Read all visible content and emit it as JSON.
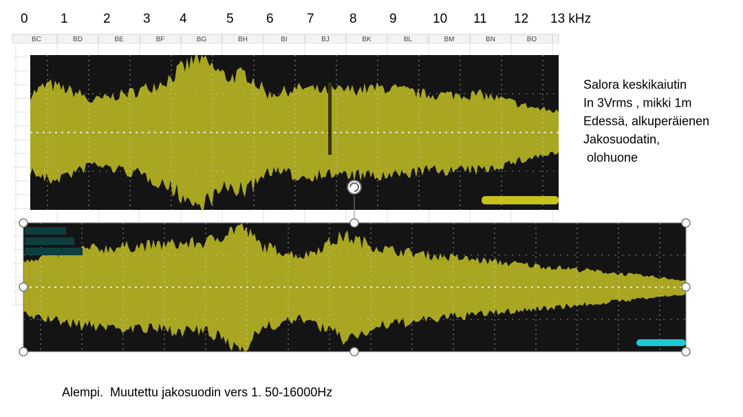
{
  "frequency_axis": {
    "labels": [
      "0",
      "1",
      "2",
      "3",
      "4",
      "5",
      "6",
      "7",
      "8",
      "9",
      "10",
      "11",
      "12",
      "13 kHz"
    ]
  },
  "sheet": {
    "columns": [
      "BC",
      "BD",
      "BE",
      "BF",
      "BG",
      "BH",
      "BI",
      "BJ",
      "BK",
      "BL",
      "BM",
      "BN",
      "BO"
    ]
  },
  "notes": {
    "lines": [
      "Salora keskikaiutin",
      "In 3Vrms , mikki 1m",
      "Edessä, alkuperäienen",
      "Jakosuodatin,",
      " olohuone"
    ]
  },
  "caption": "Alempi.  Muutettu jakosuodin vers 1. 50-16000Hz"
}
